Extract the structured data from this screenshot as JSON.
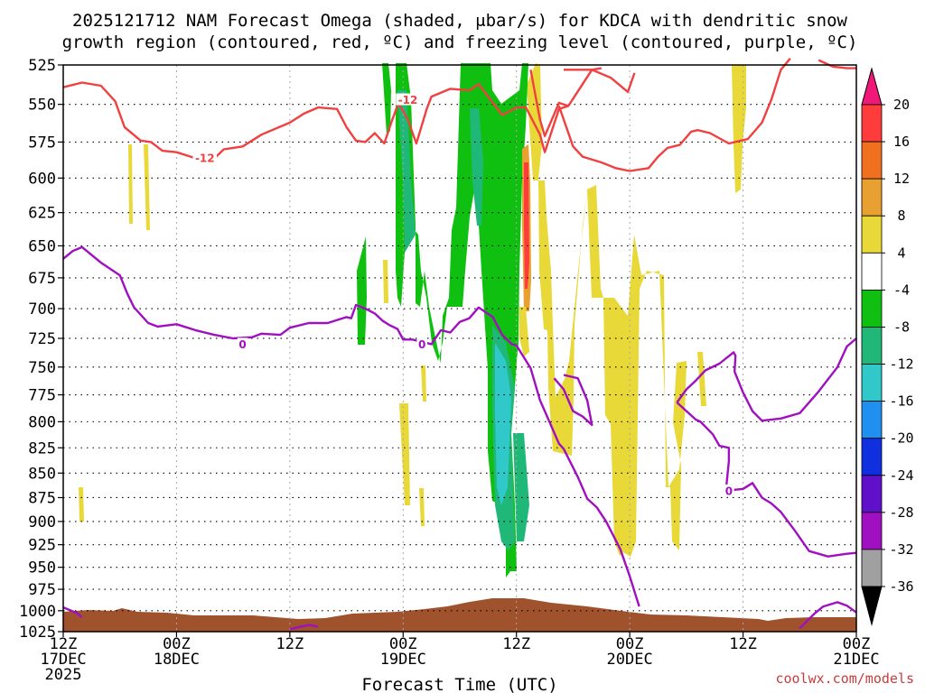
{
  "page": {
    "title_line1": "2025121712 NAM Forecast Omega (shaded, μbar/s) for KDCA with dendritic snow",
    "title_line2": "growth region (contoured, red, ºC) and freezing level (contoured, purple, ºC)",
    "credit": "coolwx.com/models"
  },
  "chart_data": {
    "type": "heatmap",
    "xlabel": "Forecast Time (UTC)",
    "ylabel": "",
    "x_range_hours": [
      0,
      84
    ],
    "y_range_hpa": [
      1025,
      525
    ],
    "y_scale": "log-pressure (inverted)",
    "grid": true,
    "y_ticks": [
      525,
      550,
      575,
      600,
      625,
      650,
      675,
      700,
      725,
      750,
      775,
      800,
      825,
      850,
      875,
      900,
      925,
      950,
      975,
      1000,
      1025
    ],
    "x_ticks": [
      {
        "hour": 0,
        "line1": "12Z",
        "line2": "17DEC",
        "line3": "2025"
      },
      {
        "hour": 12,
        "line1": "00Z",
        "line2": "18DEC",
        "line3": ""
      },
      {
        "hour": 24,
        "line1": "12Z",
        "line2": "",
        "line3": ""
      },
      {
        "hour": 36,
        "line1": "00Z",
        "line2": "19DEC",
        "line3": ""
      },
      {
        "hour": 48,
        "line1": "12Z",
        "line2": "",
        "line3": ""
      },
      {
        "hour": 60,
        "line1": "00Z",
        "line2": "20DEC",
        "line3": ""
      },
      {
        "hour": 72,
        "line1": "12Z",
        "line2": "",
        "line3": ""
      },
      {
        "hour": 84,
        "line1": "00Z",
        "line2": "21DEC",
        "line3": ""
      }
    ],
    "colorbar": {
      "labels": [
        20,
        16,
        12,
        8,
        4,
        -4,
        -8,
        -12,
        -16,
        -20,
        -24,
        -28,
        -32,
        -36
      ],
      "colors": [
        "#ff3c3c",
        "#f07020",
        "#e8a030",
        "#e8d838",
        "#ffffff",
        "#10c010",
        "#20b878",
        "#30c8c8",
        "#2090f0",
        "#1030e0",
        "#6010c8",
        "#a010c0",
        "#a0a0a0"
      ],
      "top_arrow_color": "#f01878",
      "bottom_arrow_color": "#000000"
    },
    "series": [
      {
        "contour_value": -12,
        "color": "#f04040",
        "labels": [
          {
            "hour": 15,
            "hpa": 586
          },
          {
            "hour": 36.5,
            "hpa": 547
          }
        ],
        "lines": [
          [
            [
              0,
              539
            ],
            [
              2,
              536
            ],
            [
              4,
              538
            ],
            [
              5.5,
              548
            ],
            [
              6.5,
              565
            ],
            [
              8.2,
              574
            ],
            [
              9.3,
              575
            ],
            [
              10.5,
              581
            ],
            [
              12,
              582
            ],
            [
              13.5,
              585
            ],
            [
              14.8,
              588
            ],
            [
              16.2,
              585
            ],
            [
              17,
              580
            ],
            [
              19,
              578
            ],
            [
              21,
              570
            ],
            [
              24,
              562
            ],
            [
              25.5,
              556
            ],
            [
              27,
              552
            ],
            [
              29,
              553
            ],
            [
              30,
              565
            ],
            [
              31,
              574
            ],
            [
              32,
              575
            ],
            [
              33,
              569
            ],
            [
              34,
              576
            ],
            [
              34.8,
              561
            ],
            [
              35.5,
              549
            ],
            [
              36.5,
              560
            ],
            [
              37.4,
              576
            ],
            [
              38.5,
              553
            ],
            [
              39,
              545
            ],
            [
              41,
              540
            ],
            [
              43,
              541
            ],
            [
              44,
              537
            ],
            [
              45.5,
              549
            ],
            [
              46.5,
              557
            ],
            [
              48,
              552
            ],
            [
              49,
              552
            ],
            [
              50.5,
              570
            ],
            [
              51,
              582
            ],
            [
              52.5,
              553
            ],
            [
              53.5,
              551
            ],
            [
              56,
              528
            ],
            [
              57,
              527
            ]
          ],
          [
            [
              49.5,
              528
            ],
            [
              50.5,
              560
            ],
            [
              51,
              571
            ],
            [
              52.5,
              549
            ],
            [
              53.5,
              551
            ]
          ],
          [
            [
              53,
              528
            ],
            [
              56,
              528
            ],
            [
              58,
              533
            ],
            [
              59.8,
              542
            ],
            [
              60.5,
              530
            ]
          ],
          [
            [
              52.5,
              551
            ],
            [
              54,
              578
            ],
            [
              55,
              585
            ],
            [
              57,
              589
            ],
            [
              58.5,
              593
            ],
            [
              60,
              595
            ],
            [
              62,
              593
            ],
            [
              63,
              585
            ],
            [
              64,
              579
            ],
            [
              65.3,
              577
            ],
            [
              66.5,
              568
            ],
            [
              67.2,
              567
            ],
            [
              68.5,
              569
            ],
            [
              70.5,
              576
            ],
            [
              72.5,
              573
            ],
            [
              74,
              562
            ],
            [
              75,
              547
            ],
            [
              76,
              528
            ],
            [
              77,
              521
            ]
          ],
          [
            [
              80,
              522
            ],
            [
              81.5,
              526
            ],
            [
              83,
              527
            ],
            [
              84,
              527
            ]
          ]
        ]
      },
      {
        "contour_value": 0,
        "color": "#a010c0",
        "labels": [
          {
            "hour": 19,
            "hpa": 730
          },
          {
            "hour": 38,
            "hpa": 730
          },
          {
            "hour": 70.5,
            "hpa": 868
          }
        ],
        "lines": [
          [
            [
              0,
              660
            ],
            [
              1,
              654
            ],
            [
              2,
              651
            ],
            [
              4,
              663
            ],
            [
              6,
              673
            ],
            [
              6.8,
              688
            ],
            [
              7.5,
              699
            ],
            [
              9,
              712
            ],
            [
              10,
              715
            ],
            [
              12,
              713
            ],
            [
              14,
              718
            ],
            [
              16,
              722
            ],
            [
              18,
              725
            ],
            [
              20,
              724
            ],
            [
              21,
              721
            ],
            [
              23,
              722
            ],
            [
              24,
              716
            ],
            [
              26,
              712
            ],
            [
              28,
              712
            ],
            [
              30,
              707
            ],
            [
              30.5,
              708
            ],
            [
              31,
              697
            ],
            [
              32,
              700
            ],
            [
              33,
              704
            ],
            [
              33.8,
              710
            ],
            [
              34.6,
              714
            ],
            [
              35.4,
              717
            ],
            [
              36,
              726
            ],
            [
              37,
              726
            ],
            [
              39,
              730
            ],
            [
              40,
              718
            ],
            [
              41,
              720
            ],
            [
              42,
              711
            ],
            [
              43,
              708
            ],
            [
              44,
              699
            ],
            [
              45.5,
              707
            ],
            [
              46.5,
              722
            ],
            [
              47.5,
              730
            ],
            [
              48,
              731
            ],
            [
              49.5,
              751
            ],
            [
              50.5,
              780
            ],
            [
              51,
              790
            ],
            [
              52.5,
              821
            ],
            [
              53,
              826
            ],
            [
              54.5,
              854
            ],
            [
              55.5,
              876
            ],
            [
              56.5,
              885
            ],
            [
              57.5,
              900
            ],
            [
              59,
              930
            ],
            [
              60,
              960
            ],
            [
              61,
              995
            ]
          ],
          [
            [
              65,
              782
            ],
            [
              66,
              790
            ],
            [
              67,
              798
            ],
            [
              67.5,
              800
            ],
            [
              68.8,
              812
            ],
            [
              69.5,
              823
            ],
            [
              70.5,
              825
            ],
            [
              70.5,
              838
            ],
            [
              70.2,
              866
            ],
            [
              71,
              867
            ],
            [
              72,
              866
            ],
            [
              73,
              860
            ],
            [
              74,
              875
            ],
            [
              75,
              881
            ],
            [
              76,
              890
            ],
            [
              77.5,
              910
            ],
            [
              79,
              932
            ],
            [
              81,
              938
            ],
            [
              83,
              935
            ],
            [
              84,
              934
            ]
          ],
          [
            [
              65,
              782
            ],
            [
              66,
              770
            ],
            [
              67,
              762
            ],
            [
              68,
              753
            ],
            [
              69.5,
              747
            ],
            [
              71,
              737
            ],
            [
              71.2,
              740
            ],
            [
              71.1,
              754
            ],
            [
              72,
              773
            ],
            [
              73,
              790
            ],
            [
              74,
              799
            ],
            [
              76,
              797
            ],
            [
              78,
              792
            ],
            [
              80,
              772
            ],
            [
              82,
              750
            ],
            [
              83,
              732
            ],
            [
              84,
              725
            ]
          ],
          [
            [
              52,
              760
            ],
            [
              53,
              770
            ],
            [
              54,
              790
            ],
            [
              55,
              795
            ],
            [
              56,
              803
            ],
            [
              55.5,
              780
            ],
            [
              54.5,
              760
            ],
            [
              53,
              757
            ]
          ],
          [
            [
              78,
              1021
            ],
            [
              79.5,
              1004
            ],
            [
              80.5,
              995
            ],
            [
              82,
              990
            ],
            [
              83,
              994
            ],
            [
              84,
              1002
            ]
          ],
          [
            [
              0,
              996
            ],
            [
              1.5,
              1003
            ],
            [
              2,
              1008
            ]
          ],
          [
            [
              24,
              1022
            ],
            [
              26,
              1017
            ],
            [
              27,
              1019
            ]
          ]
        ]
      }
    ]
  }
}
